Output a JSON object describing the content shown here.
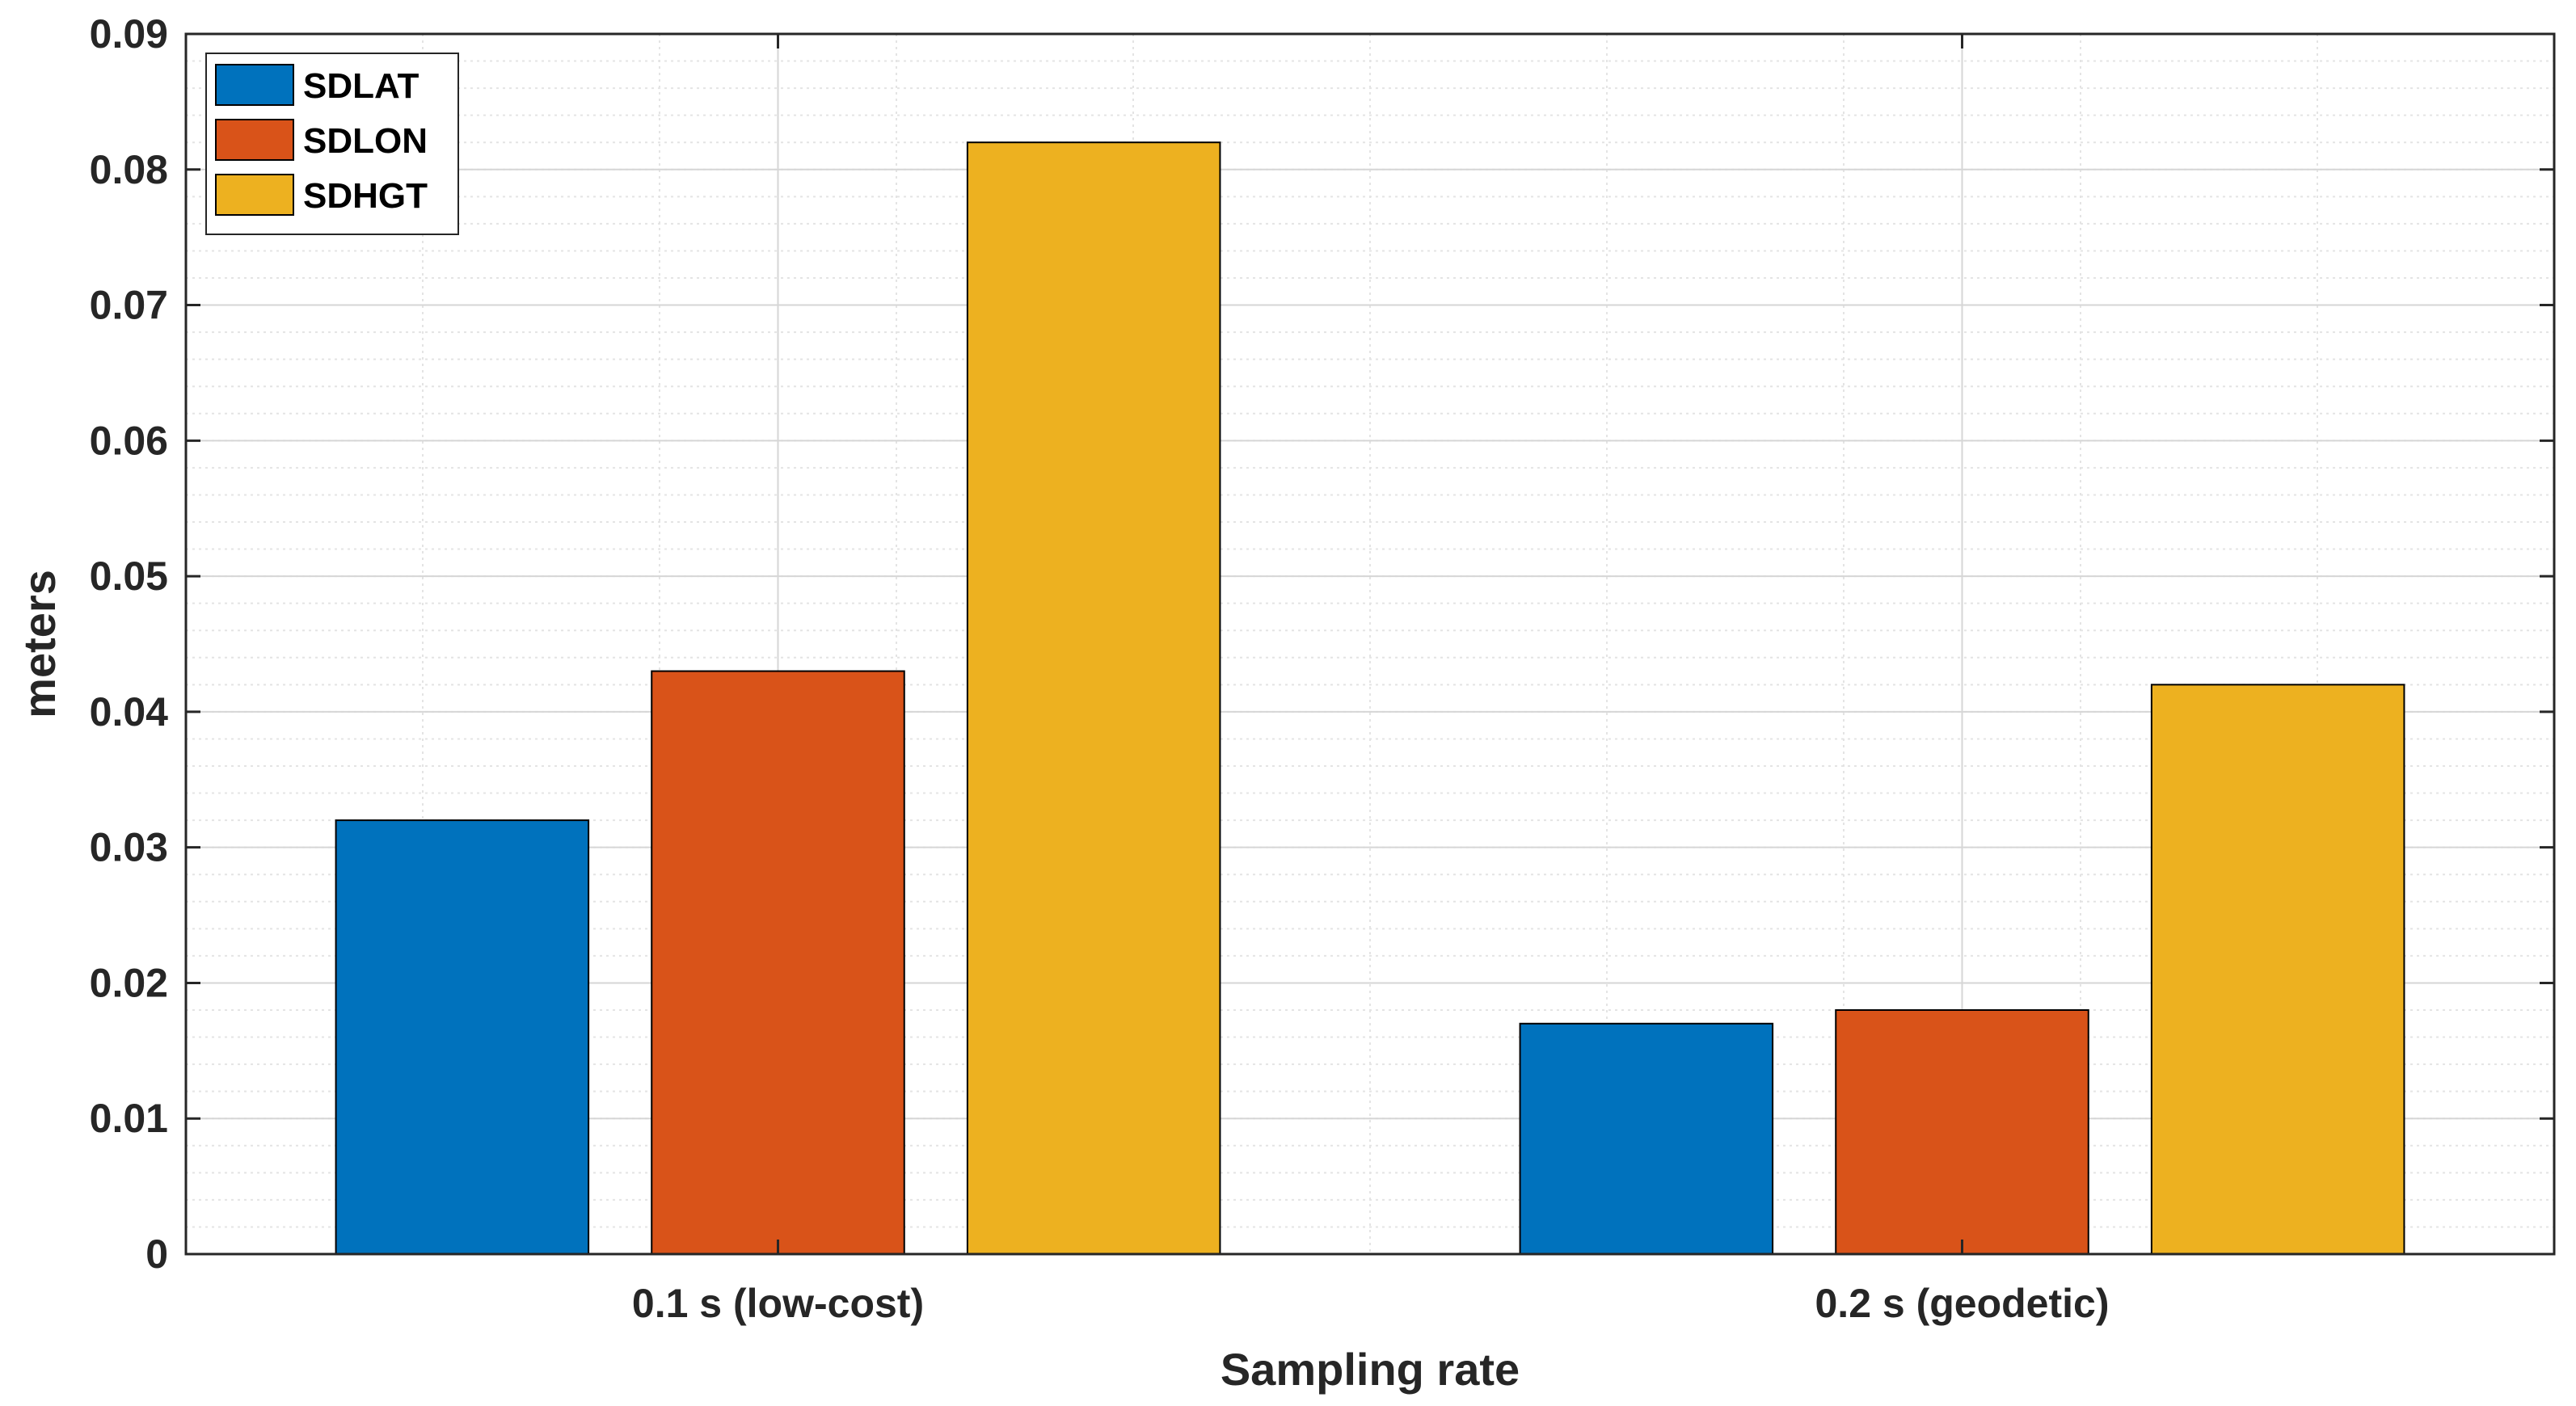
{
  "chart_data": {
    "type": "bar",
    "title": "",
    "xlabel": "Sampling rate",
    "ylabel": "meters",
    "categories": [
      "0.1 s (low-cost)",
      "0.2 s (geodetic)"
    ],
    "series": [
      {
        "name": "SDLAT",
        "color": "#0072BD",
        "values": [
          0.032,
          0.017
        ]
      },
      {
        "name": "SDLON",
        "color": "#D95319",
        "values": [
          0.043,
          0.018
        ]
      },
      {
        "name": "SDHGT",
        "color": "#EDB120",
        "values": [
          0.082,
          0.042
        ]
      }
    ],
    "ylim": [
      0,
      0.09
    ],
    "yticks": [
      0,
      0.01,
      0.02,
      0.03,
      0.04,
      0.05,
      0.06,
      0.07,
      0.08,
      0.09
    ],
    "ytick_labels": [
      "0",
      "0.01",
      "0.02",
      "0.03",
      "0.04",
      "0.05",
      "0.06",
      "0.07",
      "0.08",
      "0.09"
    ],
    "grid": true,
    "minor_grid": true,
    "legend_position": "top-left"
  }
}
